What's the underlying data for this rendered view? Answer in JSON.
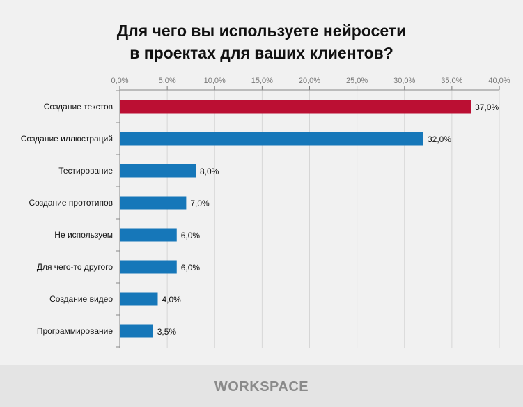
{
  "chart_data": {
    "type": "bar",
    "orientation": "horizontal",
    "title_lines": [
      "Для чего вы используете нейросети",
      "в проектах для ваших клиентов?"
    ],
    "categories": [
      "Создание текстов",
      "Создание иллюстраций",
      "Тестирование",
      "Создание прототипов",
      "Не используем",
      "Для чего-то другого",
      "Создание видео",
      "Программирование"
    ],
    "values": [
      37.0,
      32.0,
      8.0,
      7.0,
      6.0,
      6.0,
      4.0,
      3.5
    ],
    "data_labels": [
      "37,0%",
      "32,0%",
      "8,0%",
      "7,0%",
      "6,0%",
      "6,0%",
      "4,0%",
      "3,5%"
    ],
    "xlim": [
      0,
      40
    ],
    "x_ticks": [
      "0,0%",
      "5,0%",
      "10,0%",
      "15,0%",
      "20,0%",
      "25,0%",
      "30,0%",
      "35,0%",
      "40,0%"
    ],
    "x_axis_position": "top",
    "grid": true,
    "colors": {
      "highlight": "#bb0f33",
      "default": "#1677b9"
    }
  },
  "footer": {
    "logo": "WORKSPACE"
  }
}
